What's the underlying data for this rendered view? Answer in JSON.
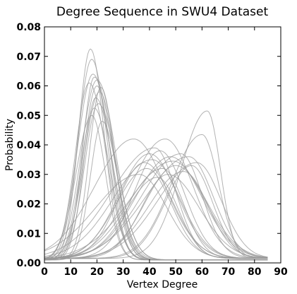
{
  "chart_data": {
    "type": "line",
    "title": "Degree Sequence in SWU4 Dataset",
    "xlabel": "Vertex Degree",
    "ylabel": "Probability",
    "xlim": [
      0,
      90
    ],
    "ylim": [
      0,
      0.08
    ],
    "x_ticks": [
      "0",
      "10",
      "20",
      "30",
      "40",
      "50",
      "60",
      "70",
      "80",
      "90"
    ],
    "y_ticks": [
      "0.00",
      "0.01",
      "0.02",
      "0.03",
      "0.04",
      "0.05",
      "0.06",
      "0.07",
      "0.08"
    ],
    "grid": false,
    "legend": "none",
    "line_color": "#999999",
    "series_groups": [
      {
        "name": "",
        "count": 14,
        "shape": "skewed peak near degree 20",
        "peaks": [
          {
            "x": 17.5,
            "y": 0.0725
          },
          {
            "x": 18.0,
            "y": 0.069
          },
          {
            "x": 18.5,
            "y": 0.064
          },
          {
            "x": 19.0,
            "y": 0.063
          },
          {
            "x": 20.0,
            "y": 0.06
          },
          {
            "x": 21.0,
            "y": 0.058
          },
          {
            "x": 19.5,
            "y": 0.056
          },
          {
            "x": 20.5,
            "y": 0.054
          },
          {
            "x": 18.0,
            "y": 0.05
          },
          {
            "x": 22.0,
            "y": 0.048
          },
          {
            "x": 17.0,
            "y": 0.061
          },
          {
            "x": 20.0,
            "y": 0.062
          },
          {
            "x": 21.5,
            "y": 0.0595
          },
          {
            "x": 19.0,
            "y": 0.0525
          }
        ]
      },
      {
        "name": "",
        "count": 22,
        "shape": "broad peak near degree 40-60",
        "peaks": [
          {
            "x": 62.0,
            "y": 0.0515
          },
          {
            "x": 60.0,
            "y": 0.0435
          },
          {
            "x": 46.0,
            "y": 0.042
          },
          {
            "x": 34.0,
            "y": 0.042
          },
          {
            "x": 42.0,
            "y": 0.039
          },
          {
            "x": 44.0,
            "y": 0.038
          },
          {
            "x": 40.0,
            "y": 0.037
          },
          {
            "x": 48.0,
            "y": 0.036
          },
          {
            "x": 52.0,
            "y": 0.037
          },
          {
            "x": 55.0,
            "y": 0.036
          },
          {
            "x": 38.0,
            "y": 0.034
          },
          {
            "x": 50.0,
            "y": 0.033
          },
          {
            "x": 45.0,
            "y": 0.032
          },
          {
            "x": 58.0,
            "y": 0.034
          },
          {
            "x": 36.0,
            "y": 0.03
          },
          {
            "x": 47.0,
            "y": 0.03
          },
          {
            "x": 43.0,
            "y": 0.029
          },
          {
            "x": 53.0,
            "y": 0.031
          },
          {
            "x": 41.0,
            "y": 0.035
          },
          {
            "x": 49.0,
            "y": 0.0345
          },
          {
            "x": 56.0,
            "y": 0.033
          },
          {
            "x": 39.0,
            "y": 0.032
          }
        ]
      }
    ]
  }
}
